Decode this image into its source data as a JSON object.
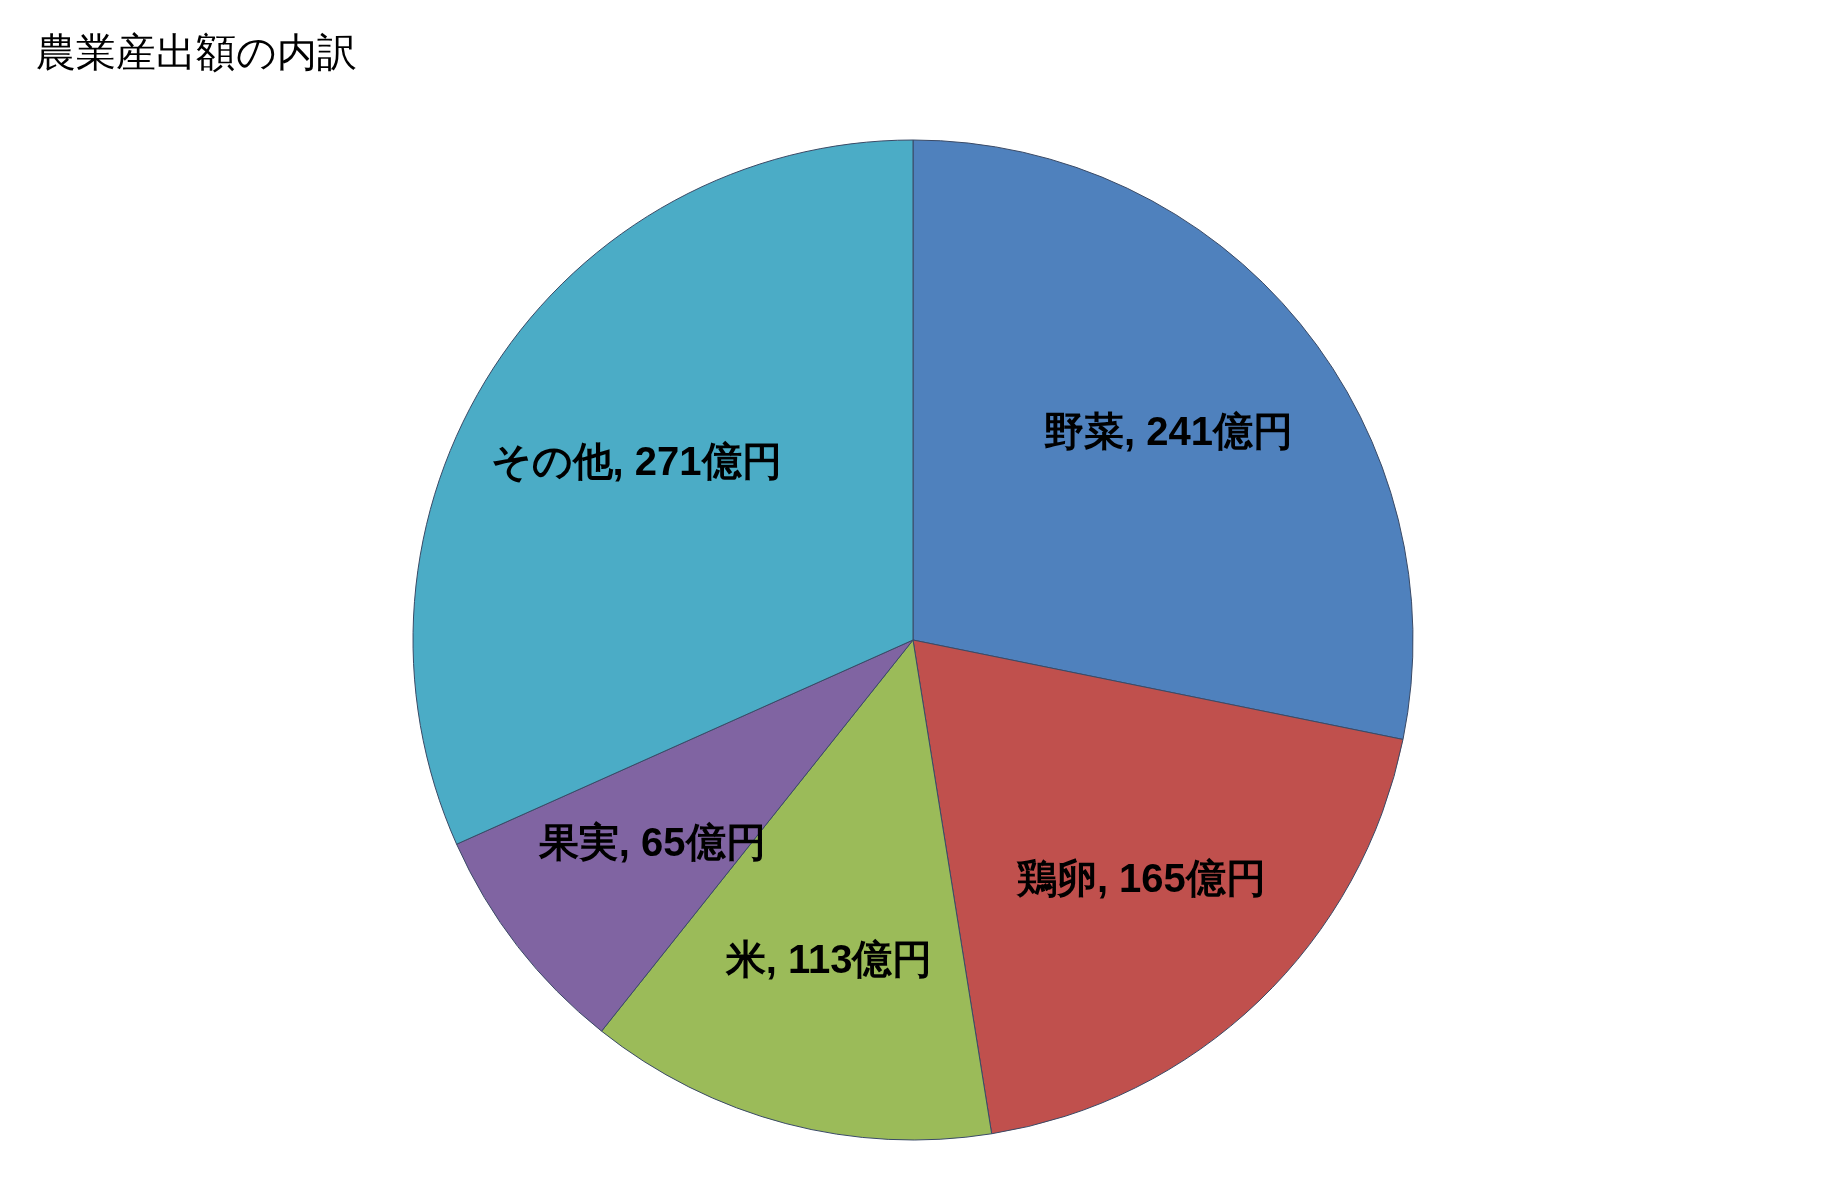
{
  "chart_data": {
    "type": "pie",
    "title": "農業産出額の内訳",
    "categories": [
      "野菜",
      "鶏卵",
      "米",
      "果実",
      "その他"
    ],
    "values": [
      241,
      165,
      113,
      65,
      271
    ],
    "colors": [
      "#4f81bd",
      "#c0504d",
      "#9bbb59",
      "#8064a2",
      "#4bacc6"
    ],
    "value_labels": [
      "241億円",
      "165億円",
      "113億円",
      "65億円",
      "271億円"
    ]
  }
}
